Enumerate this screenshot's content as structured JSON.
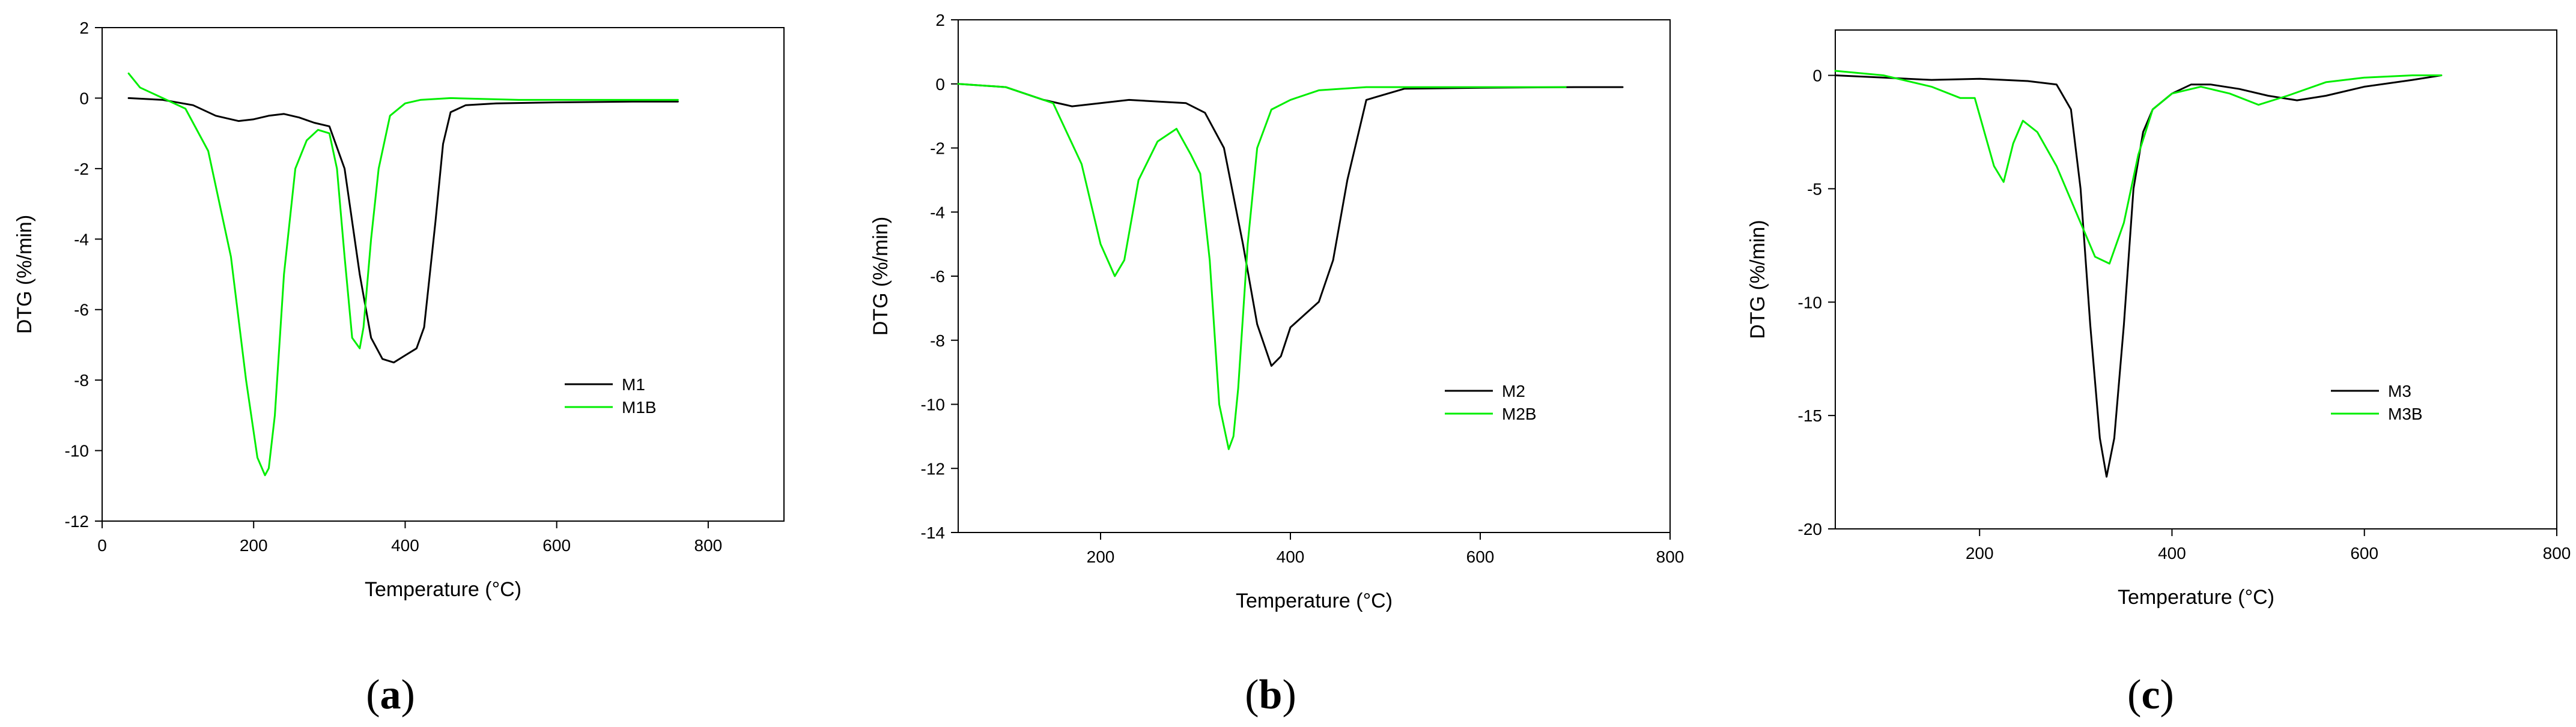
{
  "figure": {
    "panels": [
      {
        "caption": "a"
      },
      {
        "caption": "b"
      },
      {
        "caption": "c"
      }
    ]
  },
  "chart_data": [
    {
      "type": "line",
      "title": "",
      "xlabel": "Temperature (°C)",
      "ylabel": "DTG (%/min)",
      "xlim": [
        0,
        900
      ],
      "ylim": [
        -12,
        2
      ],
      "xticks": [
        0,
        200,
        400,
        600,
        800
      ],
      "yticks": [
        -12,
        -10,
        -8,
        -6,
        -4,
        -2,
        0,
        2
      ],
      "grid": false,
      "legend_position": "lower-right",
      "series": [
        {
          "name": "M1",
          "color": "#000000",
          "x": [
            35,
            80,
            120,
            150,
            180,
            200,
            220,
            240,
            260,
            280,
            300,
            320,
            340,
            355,
            370,
            385,
            400,
            415,
            425,
            440,
            450,
            460,
            480,
            520,
            600,
            700,
            760
          ],
          "y": [
            0.0,
            -0.05,
            -0.2,
            -0.5,
            -0.65,
            -0.6,
            -0.5,
            -0.45,
            -0.55,
            -0.7,
            -0.8,
            -2.0,
            -5.0,
            -6.8,
            -7.4,
            -7.5,
            -7.3,
            -7.1,
            -6.5,
            -3.5,
            -1.3,
            -0.4,
            -0.2,
            -0.15,
            -0.12,
            -0.1,
            -0.1
          ]
        },
        {
          "name": "M1B",
          "color": "#00ee00",
          "x": [
            35,
            50,
            80,
            110,
            140,
            170,
            190,
            205,
            215,
            220,
            228,
            240,
            255,
            270,
            285,
            300,
            310,
            320,
            330,
            340,
            345,
            355,
            365,
            380,
            400,
            420,
            460,
            550,
            650,
            760
          ],
          "y": [
            0.7,
            0.3,
            0.0,
            -0.3,
            -1.5,
            -4.5,
            -8.0,
            -10.2,
            -10.7,
            -10.5,
            -9.0,
            -5.0,
            -2.0,
            -1.2,
            -0.9,
            -1.0,
            -2.0,
            -4.5,
            -6.8,
            -7.1,
            -6.5,
            -4.0,
            -2.0,
            -0.5,
            -0.15,
            -0.05,
            0.0,
            -0.05,
            -0.05,
            -0.05
          ]
        }
      ]
    },
    {
      "type": "line",
      "title": "",
      "xlabel": "Temperature (°C)",
      "ylabel": "DTG (%/min)",
      "xlim": [
        50,
        800
      ],
      "ylim": [
        -14,
        2
      ],
      "xticks": [
        200,
        400,
        600,
        800
      ],
      "yticks": [
        -14,
        -12,
        -10,
        -8,
        -6,
        -4,
        -2,
        0,
        2
      ],
      "grid": false,
      "legend_position": "lower-right",
      "series": [
        {
          "name": "M2",
          "color": "#000000",
          "x": [
            50,
            100,
            140,
            170,
            200,
            230,
            260,
            290,
            310,
            330,
            350,
            365,
            380,
            390,
            400,
            415,
            430,
            445,
            460,
            480,
            520,
            600,
            700,
            750
          ],
          "y": [
            0.0,
            -0.1,
            -0.5,
            -0.7,
            -0.6,
            -0.5,
            -0.55,
            -0.6,
            -0.9,
            -2.0,
            -5.0,
            -7.5,
            -8.8,
            -8.5,
            -7.6,
            -7.2,
            -6.8,
            -5.5,
            -3.0,
            -0.5,
            -0.15,
            -0.12,
            -0.1,
            -0.1
          ]
        },
        {
          "name": "M2B",
          "color": "#00ee00",
          "x": [
            50,
            100,
            150,
            180,
            200,
            215,
            225,
            240,
            260,
            280,
            295,
            305,
            315,
            325,
            335,
            340,
            345,
            355,
            365,
            380,
            400,
            430,
            480,
            550,
            650,
            690
          ],
          "y": [
            0.0,
            -0.1,
            -0.6,
            -2.5,
            -5.0,
            -6.0,
            -5.5,
            -3.0,
            -1.8,
            -1.4,
            -2.2,
            -2.8,
            -5.5,
            -10.0,
            -11.4,
            -11.0,
            -9.5,
            -5.0,
            -2.0,
            -0.8,
            -0.5,
            -0.2,
            -0.1,
            -0.1,
            -0.1,
            -0.1
          ]
        }
      ]
    },
    {
      "type": "line",
      "title": "",
      "xlabel": "Temperature (°C)",
      "ylabel": "DTG (%/min)",
      "xlim": [
        50,
        800
      ],
      "ylim": [
        -20,
        2
      ],
      "xticks": [
        200,
        400,
        600,
        800
      ],
      "yticks": [
        -20,
        -15,
        -10,
        -5,
        0
      ],
      "grid": false,
      "legend_position": "lower-right",
      "series": [
        {
          "name": "M3",
          "color": "#000000",
          "x": [
            50,
            100,
            150,
            200,
            250,
            280,
            295,
            305,
            315,
            325,
            332,
            340,
            350,
            360,
            370,
            380,
            400,
            420,
            440,
            470,
            500,
            530,
            560,
            600,
            650,
            680
          ],
          "y": [
            0.0,
            -0.1,
            -0.2,
            -0.15,
            -0.25,
            -0.4,
            -1.5,
            -5.0,
            -11.0,
            -16.0,
            -17.7,
            -16.0,
            -11.0,
            -5.0,
            -2.5,
            -1.5,
            -0.8,
            -0.4,
            -0.4,
            -0.6,
            -0.9,
            -1.1,
            -0.9,
            -0.5,
            -0.2,
            0.0
          ]
        },
        {
          "name": "M3B",
          "color": "#00ee00",
          "x": [
            50,
            100,
            150,
            180,
            195,
            205,
            215,
            225,
            235,
            245,
            260,
            280,
            300,
            320,
            335,
            350,
            365,
            380,
            400,
            430,
            460,
            490,
            520,
            560,
            600,
            650,
            680
          ],
          "y": [
            0.2,
            0.0,
            -0.5,
            -1.0,
            -1.0,
            -2.5,
            -4.0,
            -4.7,
            -3.0,
            -2.0,
            -2.5,
            -4.0,
            -6.0,
            -8.0,
            -8.3,
            -6.5,
            -3.5,
            -1.5,
            -0.8,
            -0.5,
            -0.8,
            -1.3,
            -0.9,
            -0.3,
            -0.1,
            0.0,
            0.0
          ]
        }
      ]
    }
  ]
}
